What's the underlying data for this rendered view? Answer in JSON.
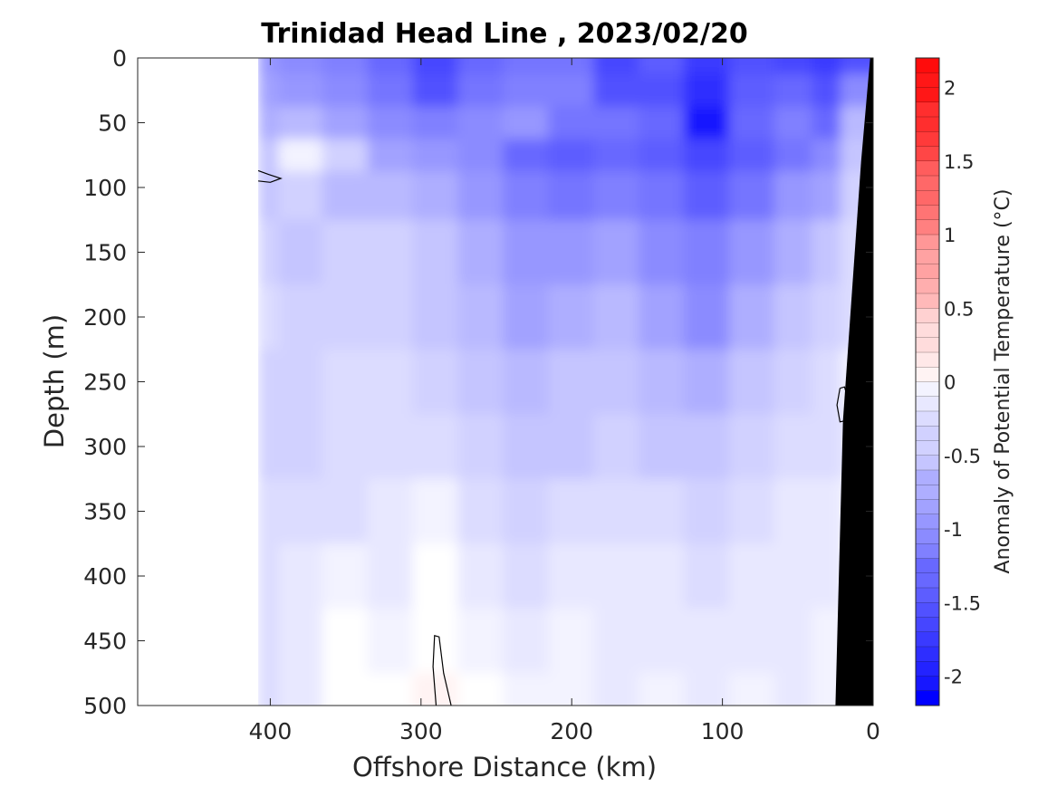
{
  "chart_data": {
    "type": "heatmap",
    "subtype": "filled-contour section",
    "title": "Trinidad Head Line , 2023/02/20",
    "xlabel": "Offshore Distance (km)",
    "ylabel": "Depth (m)",
    "xlim": [
      488,
      0
    ],
    "ylim": [
      0,
      500
    ],
    "x_reversed": true,
    "y_reversed": true,
    "xticks": [
      400,
      300,
      200,
      100,
      0
    ],
    "yticks": [
      0,
      50,
      100,
      150,
      200,
      250,
      300,
      350,
      400,
      450,
      500
    ],
    "xtick_labels": [
      "400",
      "300",
      "200",
      "100",
      "0"
    ],
    "ytick_labels": [
      "0",
      "50",
      "100",
      "150",
      "200",
      "250",
      "300",
      "350",
      "400",
      "450",
      "500"
    ],
    "colorbar": {
      "label": "Anomaly of Potential Temperature (°C)",
      "range": [
        -2.2,
        2.2
      ],
      "step": 0.1,
      "colormap": "blue-white-red",
      "ticks": [
        2,
        1.5,
        1,
        0.5,
        0,
        -0.5,
        -1,
        -1.5,
        -2
      ],
      "tick_labels": [
        "2",
        "1.5",
        "1",
        "0.5",
        "0",
        "-0.5",
        "-1",
        "-1.5",
        "-2"
      ]
    },
    "data_extent_km": [
      0,
      408
    ],
    "bathymetry": {
      "color": "#000000",
      "profile": [
        [
          2,
          0
        ],
        [
          8,
          80
        ],
        [
          20,
          280
        ],
        [
          25,
          500
        ]
      ]
    },
    "zero_contours": [
      {
        "points": [
          [
            408,
            87
          ],
          [
            401,
            90
          ],
          [
            393,
            93
          ],
          [
            400,
            96
          ],
          [
            408,
            95
          ]
        ]
      },
      {
        "points": [
          [
            22,
            255
          ],
          [
            24,
            268
          ],
          [
            22,
            281
          ],
          [
            18,
            280
          ],
          [
            17,
            262
          ],
          [
            19,
            254
          ],
          [
            22,
            255
          ]
        ]
      },
      {
        "points": [
          [
            290,
            500
          ],
          [
            292,
            470
          ],
          [
            291,
            446
          ],
          [
            288,
            447
          ],
          [
            285,
            475
          ],
          [
            280,
            500
          ]
        ]
      }
    ],
    "field": {
      "x_km": [
        408,
        380,
        350,
        320,
        290,
        260,
        230,
        200,
        170,
        140,
        110,
        80,
        50,
        30,
        12
      ],
      "depth_m": [
        0,
        25,
        50,
        75,
        100,
        150,
        200,
        250,
        300,
        350,
        400,
        450,
        500
      ],
      "values_degC": [
        [
          -0.9,
          -1.0,
          -1.1,
          -1.3,
          -1.6,
          -1.3,
          -1.2,
          -1.2,
          -1.6,
          -1.4,
          -1.7,
          -1.5,
          -1.6,
          -1.7,
          -1.5
        ],
        [
          -0.8,
          -0.9,
          -1.0,
          -1.2,
          -1.5,
          -1.2,
          -1.1,
          -1.1,
          -1.5,
          -1.5,
          -1.8,
          -1.4,
          -1.3,
          -1.5,
          -1.0
        ],
        [
          -0.7,
          -0.6,
          -0.8,
          -1.0,
          -1.1,
          -1.0,
          -0.9,
          -1.2,
          -1.2,
          -1.3,
          -2.0,
          -1.3,
          -1.1,
          -1.3,
          -0.6
        ],
        [
          -0.5,
          -0.1,
          -0.4,
          -0.8,
          -0.9,
          -1.0,
          -1.3,
          -1.4,
          -1.3,
          -1.4,
          -1.6,
          -1.4,
          -1.2,
          -1.0,
          -0.5
        ],
        [
          -0.5,
          -0.4,
          -0.6,
          -0.6,
          -0.7,
          -0.9,
          -1.1,
          -1.2,
          -1.1,
          -1.2,
          -1.4,
          -1.2,
          -0.9,
          -0.8,
          -0.4
        ],
        [
          -0.4,
          -0.5,
          -0.4,
          -0.4,
          -0.5,
          -0.7,
          -0.9,
          -0.9,
          -0.8,
          -1.0,
          -1.1,
          -0.9,
          -0.7,
          -0.5,
          -0.3
        ],
        [
          -0.3,
          -0.4,
          -0.4,
          -0.4,
          -0.5,
          -0.6,
          -0.8,
          -0.7,
          -0.6,
          -0.8,
          -1.0,
          -0.7,
          -0.5,
          -0.4,
          -0.3
        ],
        [
          -0.4,
          -0.4,
          -0.3,
          -0.3,
          -0.4,
          -0.5,
          -0.6,
          -0.5,
          -0.5,
          -0.6,
          -0.7,
          -0.5,
          -0.4,
          -0.3,
          -0.1
        ],
        [
          -0.4,
          -0.4,
          -0.3,
          -0.3,
          -0.3,
          -0.4,
          -0.5,
          -0.5,
          -0.4,
          -0.5,
          -0.5,
          -0.4,
          -0.3,
          -0.3,
          -0.2
        ],
        [
          -0.3,
          -0.3,
          -0.3,
          -0.2,
          -0.1,
          -0.3,
          -0.4,
          -0.3,
          -0.3,
          -0.3,
          -0.4,
          -0.3,
          -0.2,
          -0.2,
          -0.1
        ],
        [
          -0.3,
          -0.2,
          -0.1,
          -0.2,
          0.0,
          -0.2,
          -0.3,
          -0.2,
          -0.2,
          -0.2,
          -0.3,
          -0.2,
          -0.2,
          -0.2,
          -0.1
        ],
        [
          -0.3,
          -0.2,
          0.0,
          -0.1,
          0.0,
          -0.1,
          -0.2,
          -0.1,
          -0.2,
          -0.2,
          -0.2,
          -0.2,
          -0.2,
          -0.1,
          -0.1
        ],
        [
          -0.3,
          -0.2,
          0.0,
          0.0,
          0.05,
          0.0,
          -0.1,
          -0.1,
          -0.2,
          -0.1,
          -0.2,
          -0.1,
          -0.2,
          -0.1,
          -0.1
        ]
      ]
    }
  }
}
